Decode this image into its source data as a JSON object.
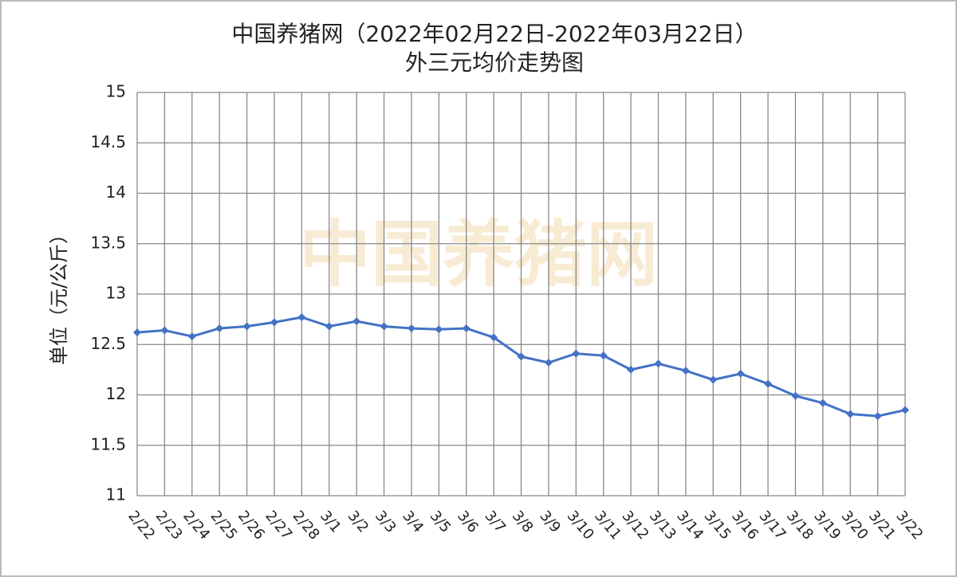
{
  "chart_data": {
    "type": "line",
    "title": [
      "中国养猪网（2022年02月22日-2022年03月22日）",
      "外三元均价走势图"
    ],
    "y_label": "单位（元/公斤）",
    "watermark": "中国养猪网",
    "categories": [
      "2/22",
      "2/23",
      "2/24",
      "2/25",
      "2/26",
      "2/27",
      "2/28",
      "3/1",
      "3/2",
      "3/3",
      "3/4",
      "3/5",
      "3/6",
      "3/7",
      "3/8",
      "3/9",
      "3/10",
      "3/11",
      "3/12",
      "3/13",
      "3/14",
      "3/15",
      "3/16",
      "3/17",
      "3/18",
      "3/19",
      "3/20",
      "3/21",
      "3/22"
    ],
    "series": [
      {
        "color": "#4472c4",
        "values": [
          12.62,
          12.64,
          12.58,
          12.66,
          12.68,
          12.72,
          12.77,
          12.68,
          12.73,
          12.68,
          12.66,
          12.65,
          12.66,
          12.57,
          12.38,
          12.32,
          12.41,
          12.39,
          12.25,
          12.31,
          12.24,
          12.15,
          12.21,
          12.11,
          11.99,
          11.92,
          11.81,
          11.79,
          11.85
        ]
      }
    ],
    "ylim": [
      11,
      15
    ],
    "yticks": [
      11,
      11.5,
      12,
      12.5,
      13,
      13.5,
      14,
      14.5,
      15
    ],
    "grid": true
  }
}
